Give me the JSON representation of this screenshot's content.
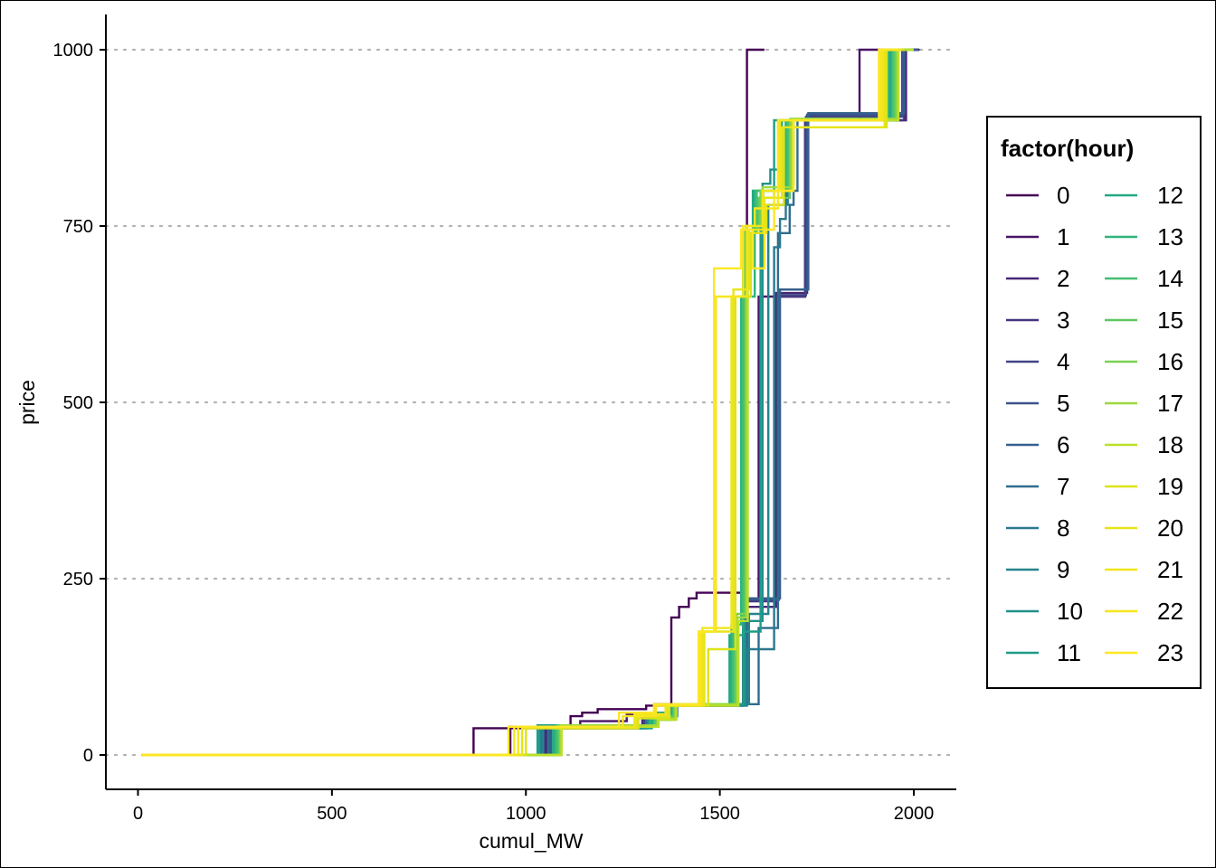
{
  "chart_data": {
    "type": "line",
    "subtype": "step",
    "title": "",
    "xlabel": "cumul_MW",
    "ylabel": "price",
    "xlim": [
      -80,
      2110
    ],
    "ylim": [
      -50,
      1050
    ],
    "x_ticks": [
      0,
      500,
      1000,
      1500,
      2000
    ],
    "x_tick_labels": [
      "0",
      "500",
      "1000",
      "1500",
      "2000"
    ],
    "y_ticks": [
      0,
      250,
      500,
      750,
      1000
    ],
    "y_tick_labels": [
      "0",
      "250",
      "500",
      "750",
      "1000"
    ],
    "grid": "horizontal dotted major",
    "legend": {
      "title": "factor(hour)",
      "placement": "right",
      "columns": 2,
      "entries": [
        "0",
        "1",
        "2",
        "3",
        "4",
        "5",
        "6",
        "7",
        "8",
        "9",
        "10",
        "11",
        "12",
        "13",
        "14",
        "15",
        "16",
        "17",
        "18",
        "19",
        "20",
        "21",
        "22",
        "23"
      ]
    },
    "colors": [
      "#440154",
      "#481467",
      "#482576",
      "#463480",
      "#414487",
      "#3B528B",
      "#35608D",
      "#2F6C8E",
      "#2A788E",
      "#25848E",
      "#21908C",
      "#1E9C89",
      "#22A884",
      "#2FB47C",
      "#43BF71",
      "#5DC863",
      "#7AD151",
      "#9AD93C",
      "#BBDF27",
      "#DDE318",
      "#E8E419",
      "#F0E51C",
      "#F6E61F",
      "#FDE725"
    ],
    "series": [
      {
        "name": "0",
        "x": [
          10,
          865,
          865,
          1115,
          1115,
          1145,
          1145,
          1185,
          1185,
          1310,
          1310,
          1375,
          1375,
          1395,
          1395,
          1420,
          1420,
          1440,
          1440,
          1570,
          1570,
          1615
        ],
        "y": [
          0,
          0,
          38,
          38,
          55,
          55,
          60,
          60,
          65,
          65,
          70,
          70,
          195,
          195,
          210,
          210,
          222,
          222,
          230,
          230,
          1000,
          1000
        ]
      },
      {
        "name": "1",
        "x": [
          10,
          960,
          960,
          1140,
          1140,
          1260,
          1260,
          1330,
          1330,
          1565,
          1565,
          1600,
          1600,
          1720,
          1720,
          1860,
          1860,
          2015
        ],
        "y": [
          0,
          0,
          40,
          40,
          48,
          48,
          58,
          58,
          72,
          72,
          220,
          220,
          650,
          650,
          900,
          900,
          1000,
          1000
        ]
      },
      {
        "name": "2",
        "x": [
          10,
          1050,
          1050,
          1300,
          1300,
          1380,
          1380,
          1560,
          1560,
          1645,
          1645,
          1725,
          1725,
          1980,
          1980,
          2010
        ],
        "y": [
          0,
          0,
          38,
          38,
          55,
          55,
          70,
          70,
          210,
          210,
          655,
          655,
          900,
          900,
          1000,
          1000
        ]
      },
      {
        "name": "3",
        "x": [
          10,
          1055,
          1055,
          1310,
          1310,
          1380,
          1380,
          1560,
          1560,
          1648,
          1648,
          1720,
          1720,
          1975,
          1975,
          2012
        ],
        "y": [
          0,
          0,
          38,
          38,
          55,
          55,
          70,
          70,
          218,
          218,
          650,
          650,
          900,
          900,
          1000,
          1000
        ]
      },
      {
        "name": "4",
        "x": [
          10,
          1060,
          1060,
          1305,
          1305,
          1385,
          1385,
          1565,
          1565,
          1650,
          1650,
          1722,
          1722,
          1970,
          1970,
          2005
        ],
        "y": [
          0,
          0,
          40,
          40,
          58,
          58,
          72,
          72,
          222,
          222,
          652,
          652,
          905,
          905,
          1000,
          1000
        ]
      },
      {
        "name": "5",
        "x": [
          10,
          1062,
          1062,
          1310,
          1310,
          1385,
          1385,
          1568,
          1568,
          1652,
          1652,
          1725,
          1725,
          1972,
          1972,
          2010
        ],
        "y": [
          0,
          0,
          40,
          40,
          60,
          60,
          72,
          72,
          220,
          220,
          660,
          660,
          908,
          908,
          1000,
          1000
        ]
      },
      {
        "name": "6",
        "x": [
          10,
          1065,
          1065,
          1315,
          1315,
          1385,
          1385,
          1570,
          1570,
          1655,
          1655,
          1728,
          1728,
          1975,
          1975,
          2012
        ],
        "y": [
          0,
          0,
          42,
          42,
          60,
          60,
          72,
          72,
          222,
          222,
          660,
          660,
          910,
          910,
          1000,
          1000
        ]
      },
      {
        "name": "7",
        "x": [
          10,
          1058,
          1058,
          1320,
          1320,
          1390,
          1390,
          1600,
          1600,
          1650,
          1650,
          1680,
          1680,
          1690,
          1690,
          1700,
          1700,
          1960,
          1960,
          2000
        ],
        "y": [
          0,
          0,
          38,
          38,
          55,
          55,
          72,
          72,
          180,
          180,
          740,
          740,
          780,
          780,
          800,
          800,
          900,
          900,
          1000,
          1000
        ]
      },
      {
        "name": "8",
        "x": [
          10,
          1040,
          1040,
          1310,
          1310,
          1380,
          1380,
          1570,
          1570,
          1640,
          1640,
          1655,
          1655,
          1670,
          1670,
          1955,
          1955,
          1995
        ],
        "y": [
          0,
          0,
          38,
          38,
          55,
          55,
          70,
          70,
          150,
          150,
          720,
          720,
          760,
          760,
          900,
          900,
          1000,
          1000
        ]
      },
      {
        "name": "9",
        "x": [
          10,
          1045,
          1045,
          1318,
          1318,
          1385,
          1385,
          1575,
          1575,
          1625,
          1625,
          1675,
          1675,
          1690,
          1690,
          1950,
          1950,
          1990
        ],
        "y": [
          0,
          0,
          40,
          40,
          58,
          58,
          72,
          72,
          200,
          200,
          780,
          780,
          810,
          810,
          900,
          900,
          1000,
          1000
        ]
      },
      {
        "name": "10",
        "x": [
          10,
          1035,
          1035,
          1315,
          1315,
          1380,
          1380,
          1565,
          1565,
          1610,
          1610,
          1630,
          1630,
          1680,
          1680,
          1945,
          1945,
          1985
        ],
        "y": [
          0,
          0,
          40,
          40,
          58,
          58,
          70,
          70,
          190,
          190,
          810,
          810,
          830,
          830,
          900,
          900,
          1000,
          1000
        ]
      },
      {
        "name": "11",
        "x": [
          10,
          1030,
          1030,
          1320,
          1320,
          1380,
          1380,
          1560,
          1560,
          1605,
          1605,
          1640,
          1640,
          1680,
          1680,
          1940,
          1940,
          1980
        ],
        "y": [
          0,
          0,
          42,
          42,
          60,
          60,
          72,
          72,
          175,
          175,
          790,
          790,
          900,
          900,
          900,
          900,
          1000,
          1000
        ]
      },
      {
        "name": "12",
        "x": [
          10,
          1070,
          1070,
          1325,
          1325,
          1375,
          1375,
          1525,
          1525,
          1560,
          1560,
          1585,
          1585,
          1660,
          1660,
          1940,
          1940,
          1985
        ],
        "y": [
          0,
          0,
          38,
          38,
          50,
          50,
          70,
          70,
          170,
          170,
          740,
          740,
          800,
          800,
          900,
          900,
          1000,
          1000
        ]
      },
      {
        "name": "13",
        "x": [
          10,
          1075,
          1075,
          1320,
          1320,
          1378,
          1378,
          1530,
          1530,
          1555,
          1555,
          1590,
          1590,
          1670,
          1670,
          1935,
          1935,
          1980
        ],
        "y": [
          0,
          0,
          40,
          40,
          52,
          52,
          72,
          72,
          185,
          185,
          650,
          650,
          800,
          800,
          900,
          900,
          1000,
          1000
        ]
      },
      {
        "name": "14",
        "x": [
          10,
          1080,
          1080,
          1330,
          1330,
          1380,
          1380,
          1535,
          1535,
          1560,
          1560,
          1595,
          1595,
          1675,
          1675,
          1945,
          1945,
          1990
        ],
        "y": [
          0,
          0,
          42,
          42,
          55,
          55,
          72,
          72,
          190,
          190,
          740,
          740,
          800,
          800,
          900,
          900,
          1000,
          1000
        ]
      },
      {
        "name": "15",
        "x": [
          10,
          1085,
          1085,
          1335,
          1335,
          1382,
          1382,
          1540,
          1540,
          1565,
          1565,
          1600,
          1600,
          1680,
          1680,
          1950,
          1950,
          1992
        ],
        "y": [
          0,
          0,
          42,
          42,
          55,
          55,
          72,
          72,
          195,
          195,
          745,
          745,
          790,
          790,
          900,
          900,
          1000,
          1000
        ]
      },
      {
        "name": "16",
        "x": [
          10,
          1088,
          1088,
          1338,
          1338,
          1384,
          1384,
          1543,
          1543,
          1568,
          1568,
          1605,
          1605,
          1682,
          1682,
          1955,
          1955,
          1995
        ],
        "y": [
          0,
          0,
          40,
          40,
          50,
          50,
          70,
          70,
          200,
          200,
          750,
          750,
          800,
          800,
          902,
          902,
          1000,
          1000
        ]
      },
      {
        "name": "17",
        "x": [
          10,
          1090,
          1090,
          1340,
          1340,
          1386,
          1386,
          1545,
          1545,
          1570,
          1570,
          1610,
          1610,
          1685,
          1685,
          1958,
          1958,
          1998
        ],
        "y": [
          0,
          0,
          42,
          42,
          52,
          52,
          72,
          72,
          195,
          195,
          745,
          745,
          805,
          805,
          902,
          902,
          1000,
          1000
        ]
      },
      {
        "name": "18",
        "x": [
          10,
          1092,
          1092,
          1342,
          1342,
          1388,
          1388,
          1548,
          1548,
          1572,
          1572,
          1612,
          1612,
          1688,
          1688,
          1960,
          1960,
          2000
        ],
        "y": [
          0,
          0,
          40,
          40,
          50,
          50,
          70,
          70,
          190,
          190,
          740,
          740,
          800,
          800,
          900,
          900,
          1000,
          1000
        ]
      },
      {
        "name": "19",
        "x": [
          10,
          1000,
          1000,
          1290,
          1290,
          1370,
          1370,
          1470,
          1470,
          1540,
          1540,
          1580,
          1580,
          1620,
          1620,
          1665,
          1665,
          1930,
          1930,
          1975
        ],
        "y": [
          0,
          0,
          38,
          38,
          52,
          52,
          70,
          70,
          150,
          150,
          650,
          650,
          740,
          740,
          780,
          780,
          890,
          890,
          1000,
          1000
        ]
      },
      {
        "name": "20",
        "x": [
          10,
          990,
          990,
          1285,
          1285,
          1365,
          1365,
          1460,
          1460,
          1535,
          1535,
          1575,
          1575,
          1615,
          1615,
          1660,
          1660,
          1925,
          1925,
          1970
        ],
        "y": [
          0,
          0,
          38,
          38,
          55,
          55,
          70,
          70,
          175,
          175,
          660,
          660,
          745,
          745,
          790,
          790,
          890,
          890,
          1000,
          1000
        ]
      },
      {
        "name": "21",
        "x": [
          10,
          980,
          980,
          1280,
          1280,
          1360,
          1360,
          1455,
          1455,
          1530,
          1530,
          1570,
          1570,
          1610,
          1610,
          1655,
          1655,
          1920,
          1920,
          1965
        ],
        "y": [
          0,
          0,
          40,
          40,
          58,
          58,
          70,
          70,
          180,
          180,
          650,
          650,
          750,
          750,
          800,
          800,
          900,
          900,
          1000,
          1000
        ]
      },
      {
        "name": "22",
        "x": [
          10,
          970,
          970,
          1250,
          1250,
          1335,
          1335,
          1450,
          1450,
          1490,
          1490,
          1560,
          1560,
          1590,
          1590,
          1650,
          1650,
          1915,
          1915,
          1960
        ],
        "y": [
          0,
          0,
          40,
          40,
          55,
          55,
          70,
          70,
          175,
          175,
          650,
          650,
          750,
          750,
          775,
          775,
          900,
          900,
          1000,
          1000
        ]
      },
      {
        "name": "23",
        "x": [
          10,
          955,
          955,
          1240,
          1240,
          1330,
          1330,
          1445,
          1445,
          1485,
          1485,
          1525,
          1525,
          1555,
          1555,
          1585,
          1585,
          1615,
          1615,
          1640,
          1640,
          1670,
          1670,
          1690,
          1690,
          1910,
          1910,
          1960
        ],
        "y": [
          0,
          0,
          40,
          40,
          60,
          60,
          72,
          72,
          175,
          175,
          690,
          690,
          690,
          690,
          745,
          745,
          690,
          690,
          745,
          745,
          800,
          800,
          800,
          800,
          900,
          900,
          1000,
          1000
        ]
      }
    ]
  }
}
